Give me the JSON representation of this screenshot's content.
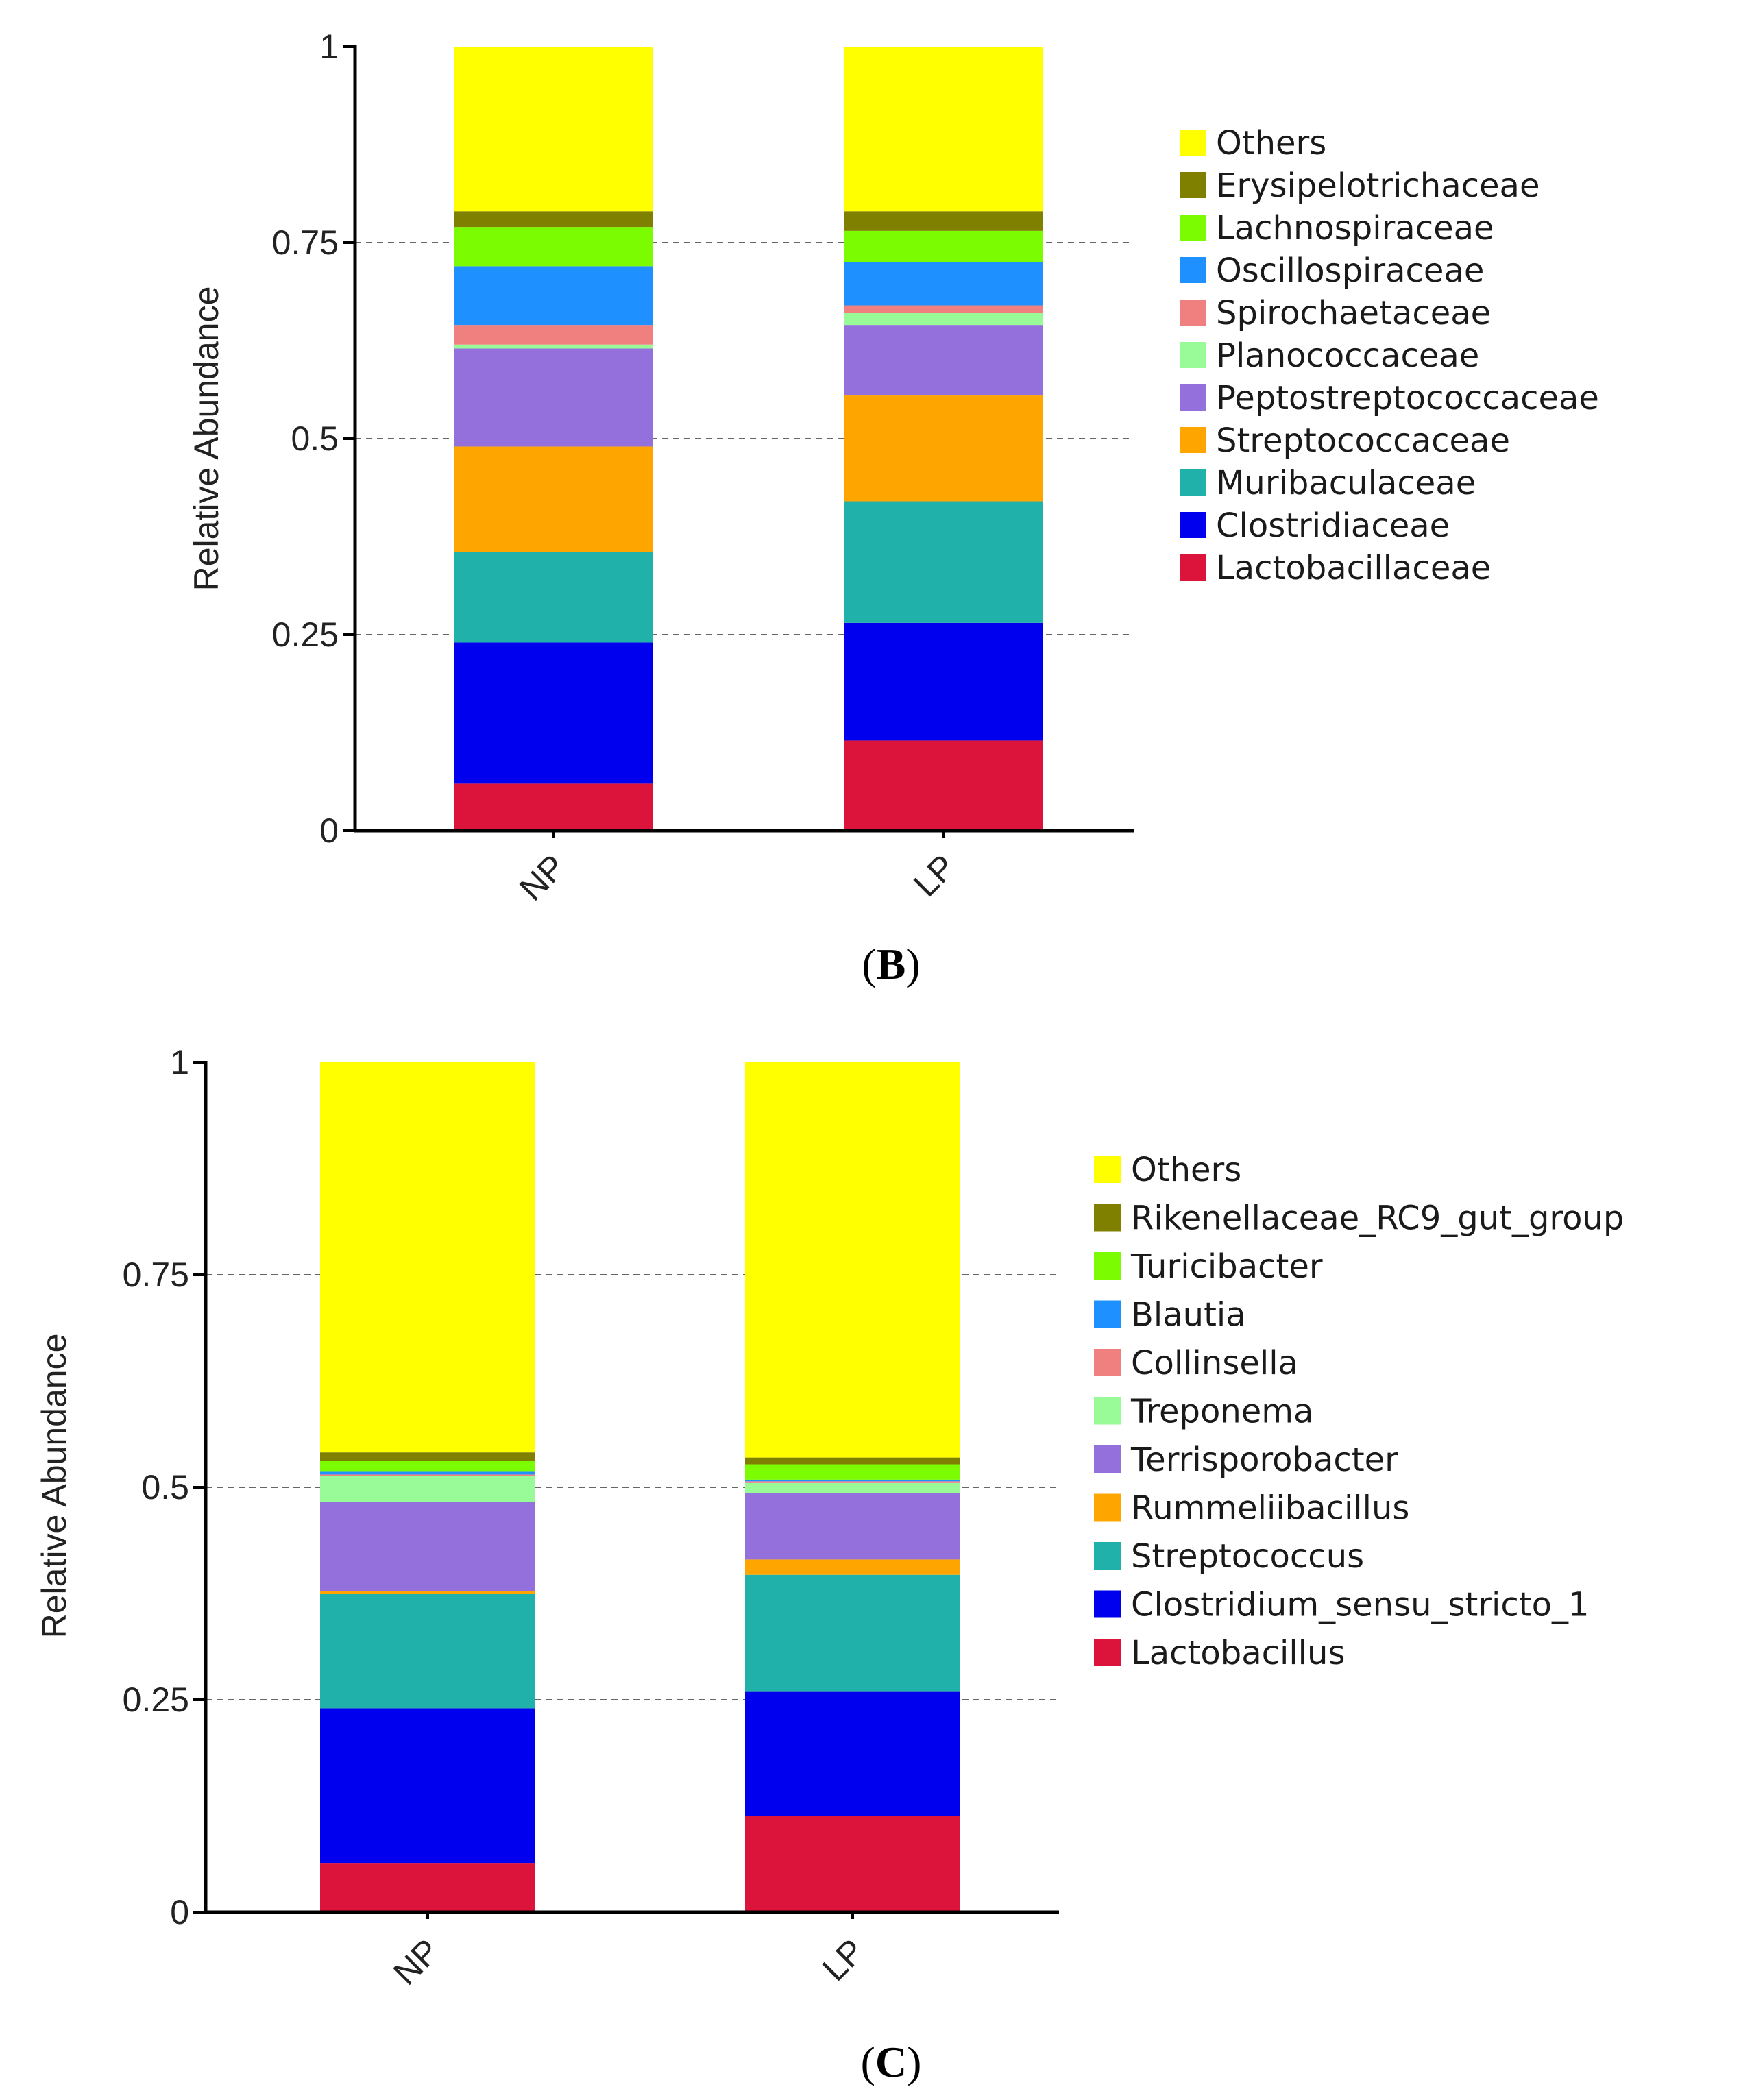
{
  "chart_data": [
    {
      "type": "bar",
      "stacked": true,
      "panel_label": "B",
      "title": "",
      "xlabel": "",
      "ylabel": "Relative Abundance",
      "ylim": [
        0,
        1
      ],
      "yticks": [
        0,
        0.25,
        0.5,
        0.75,
        1
      ],
      "ytick_labels": [
        "0",
        "0.25",
        "0.5",
        "0.75",
        "1"
      ],
      "grid": "horizontal dashed",
      "legend_position": "right",
      "categories": [
        "NP",
        "LP"
      ],
      "series": [
        {
          "name": "Lactobacillaceae",
          "color": "#DC143C",
          "values": [
            0.06,
            0.115
          ]
        },
        {
          "name": "Clostridiaceae",
          "color": "#0000EE",
          "values": [
            0.18,
            0.15
          ]
        },
        {
          "name": "Muribaculaceae",
          "color": "#20B2AA",
          "values": [
            0.115,
            0.155
          ]
        },
        {
          "name": "Streptococcaceae",
          "color": "#FFA500",
          "values": [
            0.135,
            0.135
          ]
        },
        {
          "name": "Peptostreptococcaceae",
          "color": "#9370DB",
          "values": [
            0.125,
            0.09
          ]
        },
        {
          "name": "Planococcaceae",
          "color": "#98FB98",
          "values": [
            0.005,
            0.015
          ]
        },
        {
          "name": "Spirochaetaceae",
          "color": "#F08080",
          "values": [
            0.025,
            0.01
          ]
        },
        {
          "name": "Oscillospiraceae",
          "color": "#1E90FF",
          "values": [
            0.075,
            0.055
          ]
        },
        {
          "name": "Lachnospiraceae",
          "color": "#7CFC00",
          "values": [
            0.05,
            0.04
          ]
        },
        {
          "name": "Erysipelotrichaceae",
          "color": "#808000",
          "values": [
            0.02,
            0.025
          ]
        },
        {
          "name": "Others",
          "color": "#FFFF00",
          "values": [
            0.21,
            0.21
          ]
        }
      ],
      "legend_order": [
        "Others",
        "Erysipelotrichaceae",
        "Lachnospiraceae",
        "Oscillospiraceae",
        "Spirochaetaceae",
        "Planococcaceae",
        "Peptostreptococcaceae",
        "Streptococcaceae",
        "Muribaculaceae",
        "Clostridiaceae",
        "Lactobacillaceae"
      ]
    },
    {
      "type": "bar",
      "stacked": true,
      "panel_label": "C",
      "title": "",
      "xlabel": "",
      "ylabel": "Relative Abundance",
      "ylim": [
        0,
        1
      ],
      "yticks": [
        0,
        0.25,
        0.5,
        0.75,
        1
      ],
      "ytick_labels": [
        "0",
        "0.25",
        "0.5",
        "0.75",
        "1"
      ],
      "grid": "horizontal dashed",
      "legend_position": "right",
      "categories": [
        "NP",
        "LP"
      ],
      "series": [
        {
          "name": "Lactobacillus",
          "color": "#DC143C",
          "values": [
            0.058,
            0.113
          ]
        },
        {
          "name": "Clostridium_sensu_stricto_1",
          "color": "#0000EE",
          "values": [
            0.182,
            0.147
          ]
        },
        {
          "name": "Streptococcus",
          "color": "#20B2AA",
          "values": [
            0.135,
            0.137
          ]
        },
        {
          "name": "Rummeliibacillus",
          "color": "#FFA500",
          "values": [
            0.003,
            0.018
          ]
        },
        {
          "name": "Terrisporobacter",
          "color": "#9370DB",
          "values": [
            0.105,
            0.078
          ]
        },
        {
          "name": "Treponema",
          "color": "#98FB98",
          "values": [
            0.03,
            0.012
          ]
        },
        {
          "name": "Collinsella",
          "color": "#F08080",
          "values": [
            0.002,
            0.002
          ]
        },
        {
          "name": "Blautia",
          "color": "#1E90FF",
          "values": [
            0.004,
            0.002
          ]
        },
        {
          "name": "Turicibacter",
          "color": "#7CFC00",
          "values": [
            0.012,
            0.018
          ]
        },
        {
          "name": "Rikenellaceae_RC9_gut_group",
          "color": "#808000",
          "values": [
            0.01,
            0.008
          ]
        },
        {
          "name": "Others",
          "color": "#FFFF00",
          "values": [
            0.459,
            0.465
          ]
        }
      ],
      "legend_order": [
        "Others",
        "Rikenellaceae_RC9_gut_group",
        "Turicibacter",
        "Blautia",
        "Collinsella",
        "Treponema",
        "Terrisporobacter",
        "Rummeliibacillus",
        "Streptococcus",
        "Clostridium_sensu_stricto_1",
        "Lactobacillus"
      ]
    }
  ]
}
